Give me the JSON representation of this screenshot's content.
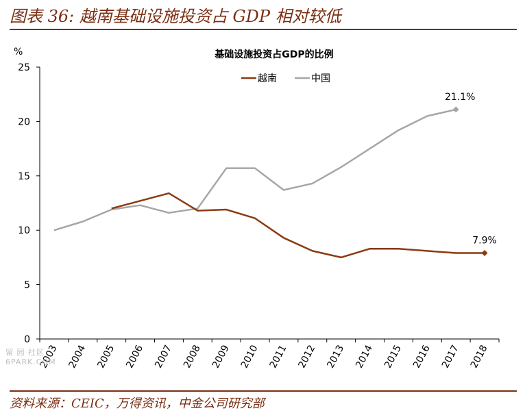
{
  "header": {
    "figure_title": "图表 36: 越南基础设施投资占 GDP 相对较低"
  },
  "footer": {
    "source": "资料来源：CEIC，万得资讯，中金公司研究部"
  },
  "watermark": {
    "line1": "留 园 社区",
    "line2": "6PARK.COM"
  },
  "colors": {
    "vietnam": "#8B3A12",
    "china": "#A6A6A6",
    "brand": "#7a2e12"
  },
  "chart_data": {
    "type": "line",
    "title": "基础设施投资占GDP的比例",
    "ylabel": "%",
    "xlabel": "",
    "ylim": [
      0,
      25
    ],
    "yticks": [
      0,
      5,
      10,
      15,
      20,
      25
    ],
    "x": [
      2003,
      2004,
      2005,
      2006,
      2007,
      2008,
      2009,
      2010,
      2011,
      2012,
      2013,
      2014,
      2015,
      2016,
      2017,
      2018
    ],
    "categories": [
      "2003",
      "2004",
      "2005",
      "2006",
      "2007",
      "2008",
      "2009",
      "2010",
      "2011",
      "2012",
      "2013",
      "2014",
      "2015",
      "2016",
      "2017",
      "2018"
    ],
    "legend_position": "top-center",
    "series": [
      {
        "name": "越南",
        "color": "#8B3A12",
        "values": [
          null,
          null,
          12.0,
          12.7,
          13.4,
          11.8,
          11.9,
          11.1,
          9.3,
          8.1,
          7.5,
          8.3,
          8.3,
          8.1,
          7.9,
          7.9
        ],
        "end_label": "7.9%"
      },
      {
        "name": "中国",
        "color": "#A6A6A6",
        "values": [
          10.0,
          10.8,
          11.9,
          12.3,
          11.6,
          12.0,
          15.7,
          15.7,
          13.7,
          14.3,
          15.8,
          17.5,
          19.2,
          20.5,
          21.1,
          null
        ],
        "end_label": "21.1%"
      }
    ]
  }
}
